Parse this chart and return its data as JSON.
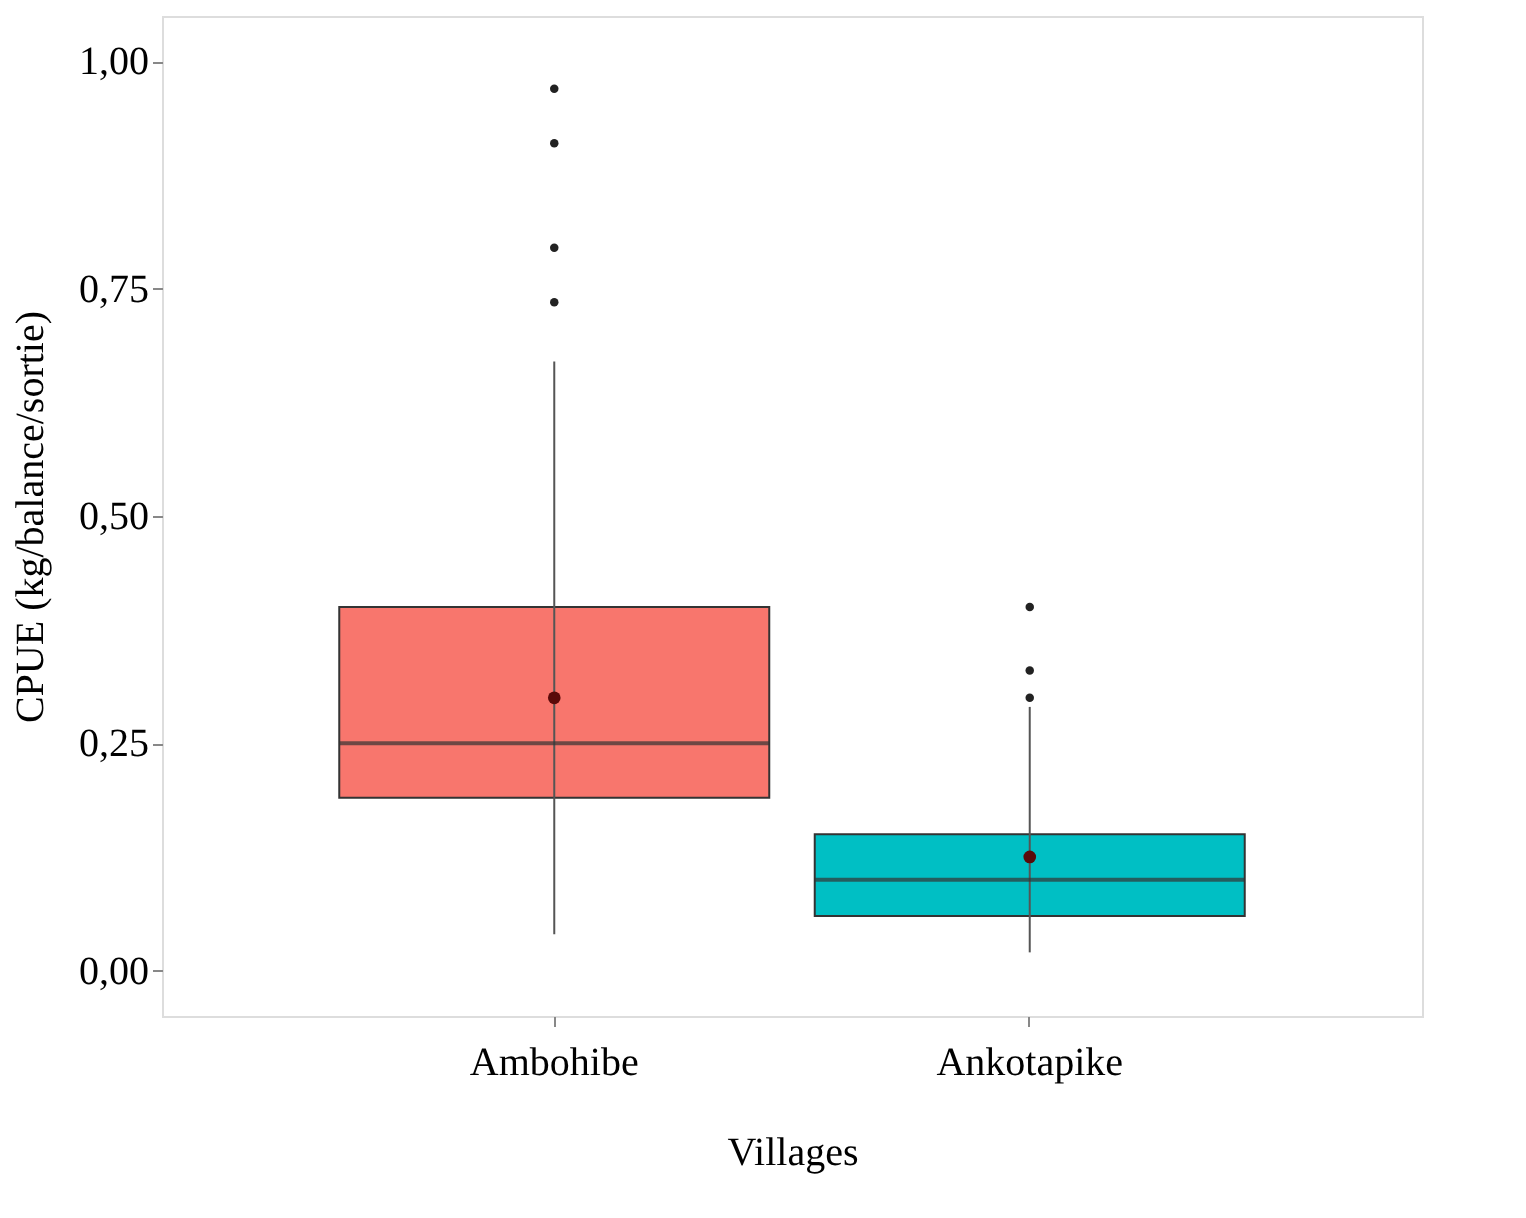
{
  "chart_data": {
    "type": "box",
    "xlabel": "Villages",
    "ylabel": "CPUE (kg/balance/sortie)",
    "categories": [
      "Ambohibe",
      "Ankotapike"
    ],
    "colors": [
      "#f8766d",
      "#00bfc4"
    ],
    "boxes": [
      {
        "low": 0.04,
        "q1": 0.19,
        "median": 0.25,
        "q3": 0.4,
        "high": 0.67,
        "mean": 0.3,
        "outliers": [
          0.735,
          0.795,
          0.91,
          0.97
        ]
      },
      {
        "low": 0.02,
        "q1": 0.06,
        "median": 0.1,
        "q3": 0.15,
        "high": 0.29,
        "mean": 0.125,
        "outliers": [
          0.3,
          0.33,
          0.4
        ]
      }
    ],
    "ylim": [
      -0.05,
      1.05
    ],
    "yticks": [
      {
        "value": 0,
        "label": "0,00"
      },
      {
        "value": 0.25,
        "label": "0,25"
      },
      {
        "value": 0.5,
        "label": "0,50"
      },
      {
        "value": 0.75,
        "label": "0,75"
      },
      {
        "value": 1,
        "label": "1,00"
      }
    ],
    "grid": false,
    "legend": false,
    "marker": "circle"
  }
}
